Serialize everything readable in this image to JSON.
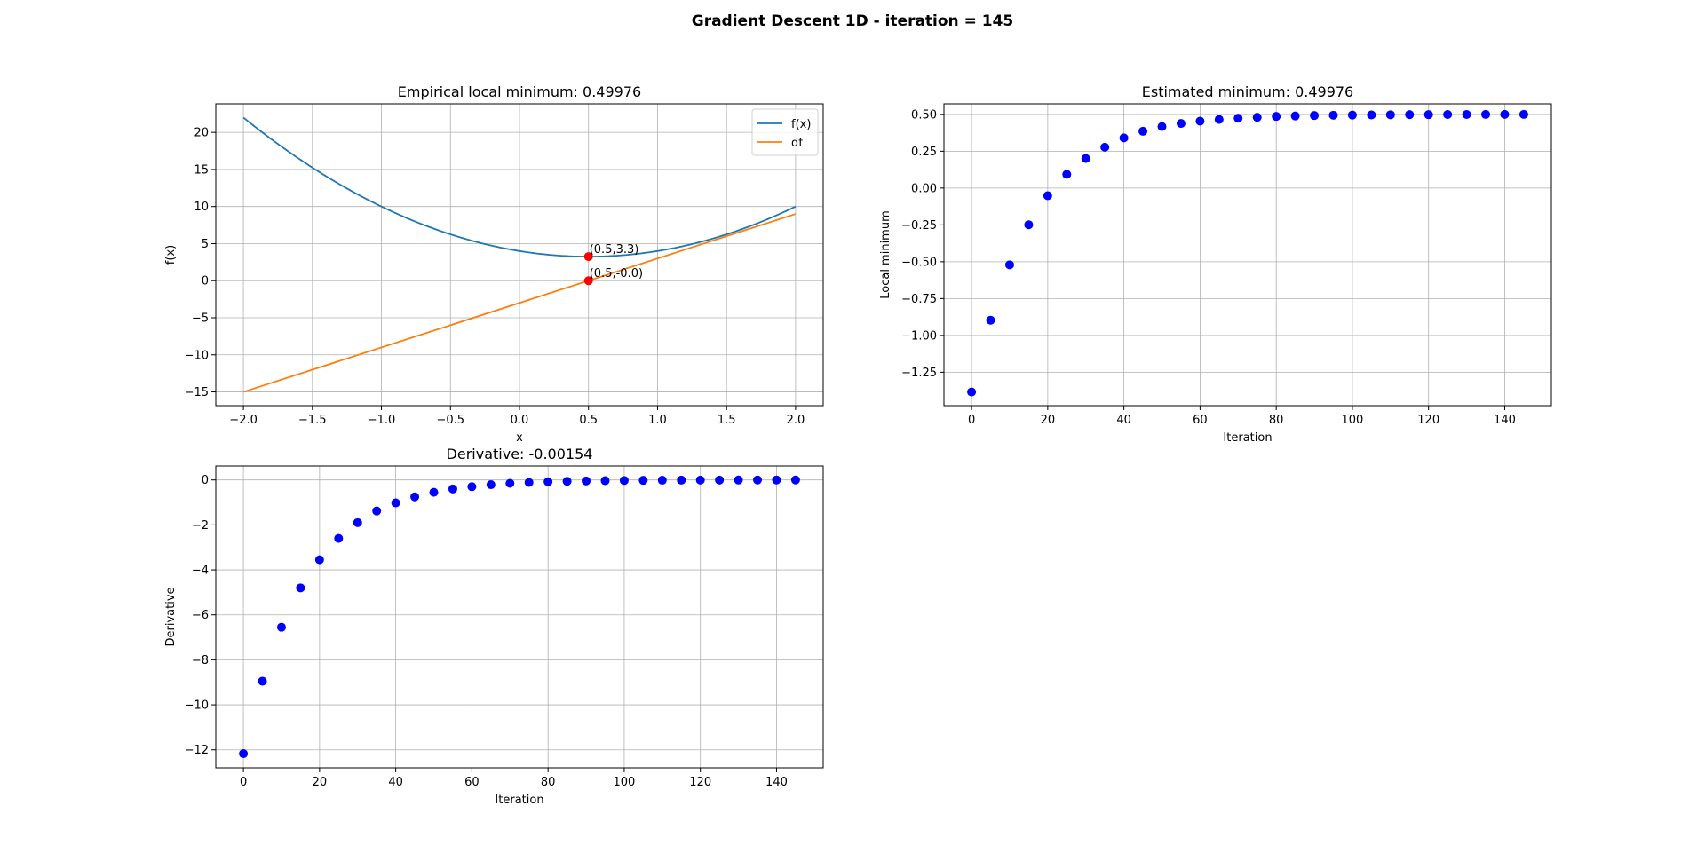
{
  "figure": {
    "suptitle": "Gradient Descent 1D - iteration = 145"
  },
  "chart_data": [
    {
      "type": "line",
      "title": "Empirical local minimum: 0.49976",
      "xlabel": "x",
      "ylabel": "f(x)",
      "xlim": [
        -2.2,
        2.2
      ],
      "ylim": [
        -16.85,
        23.85
      ],
      "xticks": [
        -2.0,
        -1.5,
        -1.0,
        -0.5,
        0.0,
        0.5,
        1.0,
        1.5,
        2.0
      ],
      "xtick_labels": [
        "−2.0",
        "−1.5",
        "−1.0",
        "−0.5",
        "0.0",
        "0.5",
        "1.0",
        "1.5",
        "2.0"
      ],
      "yticks": [
        -15,
        -10,
        -5,
        0,
        5,
        10,
        15,
        20
      ],
      "ytick_labels": [
        "−15",
        "−10",
        "−5",
        "0",
        "5",
        "10",
        "15",
        "20"
      ],
      "grid": true,
      "legend": "top-right",
      "series": [
        {
          "name": "f(x)",
          "color": "#1f77b4",
          "x": [
            -2.0,
            -1.5,
            -1.0,
            -0.5,
            0.0,
            0.5,
            1.0,
            1.5,
            2.0
          ],
          "y": [
            22.0,
            15.25,
            10.0,
            6.25,
            4.0,
            3.25,
            4.0,
            6.25,
            10.0
          ]
        },
        {
          "name": "df",
          "color": "#ff7f0e",
          "x": [
            -2.0,
            2.0
          ],
          "y": [
            -15.0,
            9.0
          ]
        }
      ],
      "points": [
        {
          "x": 0.5,
          "y": 3.25,
          "color": "#ff0000",
          "label": "(0.5,3.3)"
        },
        {
          "x": 0.5,
          "y": 0.0,
          "color": "#ff0000",
          "label": "(0.5,-0.0)"
        }
      ]
    },
    {
      "type": "scatter",
      "title": "Estimated minimum: 0.49976",
      "xlabel": "Iteration",
      "ylabel": "Local minimum",
      "xlim": [
        -7.25,
        152.25
      ],
      "ylim": [
        -1.4766,
        0.5713
      ],
      "xticks": [
        0,
        20,
        40,
        60,
        80,
        100,
        120,
        140
      ],
      "xtick_labels": [
        "0",
        "20",
        "40",
        "60",
        "80",
        "100",
        "120",
        "140"
      ],
      "yticks": [
        -1.25,
        -1.0,
        -0.75,
        -0.5,
        -0.25,
        0.0,
        0.25,
        0.5
      ],
      "ytick_labels": [
        "−1.25",
        "−1.00",
        "−0.75",
        "−0.50",
        "−0.25",
        "0.00",
        "0.25",
        "0.50"
      ],
      "grid": true,
      "marker_color": "#0000ff",
      "x": [
        0,
        5,
        10,
        15,
        20,
        25,
        30,
        35,
        40,
        45,
        50,
        55,
        60,
        65,
        70,
        75,
        80,
        85,
        90,
        95,
        100,
        105,
        110,
        115,
        120,
        125,
        130,
        135,
        140,
        145
      ],
      "y": [
        -1.384,
        -0.897,
        -0.521,
        -0.249,
        -0.052,
        0.093,
        0.2,
        0.277,
        0.34,
        0.385,
        0.417,
        0.438,
        0.454,
        0.465,
        0.474,
        0.48,
        0.486,
        0.489,
        0.492,
        0.494,
        0.495,
        0.496,
        0.497,
        0.498,
        0.498,
        0.499,
        0.499,
        0.4995,
        0.4997,
        0.49976
      ]
    },
    {
      "type": "scatter",
      "title": "Derivative: -0.00154",
      "xlabel": "Iteration",
      "ylabel": "Derivative",
      "xlim": [
        -7.25,
        152.25
      ],
      "ylim": [
        -12.8,
        0.62
      ],
      "xticks": [
        0,
        20,
        40,
        60,
        80,
        100,
        120,
        140
      ],
      "xtick_labels": [
        "0",
        "20",
        "40",
        "60",
        "80",
        "100",
        "120",
        "140"
      ],
      "yticks": [
        -12,
        -10,
        -8,
        -6,
        -4,
        -2,
        0
      ],
      "ytick_labels": [
        "−12",
        "−10",
        "−8",
        "−6",
        "−4",
        "−2",
        "0"
      ],
      "grid": true,
      "marker_color": "#0000ff",
      "x": [
        0,
        5,
        10,
        15,
        20,
        25,
        30,
        35,
        40,
        45,
        50,
        55,
        60,
        65,
        70,
        75,
        80,
        85,
        90,
        95,
        100,
        105,
        110,
        115,
        120,
        125,
        130,
        135,
        140,
        145
      ],
      "y": [
        -12.17,
        -8.95,
        -6.55,
        -4.8,
        -3.55,
        -2.6,
        -1.9,
        -1.38,
        -1.02,
        -0.75,
        -0.55,
        -0.4,
        -0.3,
        -0.21,
        -0.15,
        -0.11,
        -0.08,
        -0.06,
        -0.045,
        -0.033,
        -0.024,
        -0.018,
        -0.013,
        -0.009,
        -0.007,
        -0.005,
        -0.0037,
        -0.0027,
        -0.002,
        -0.00154
      ]
    }
  ]
}
